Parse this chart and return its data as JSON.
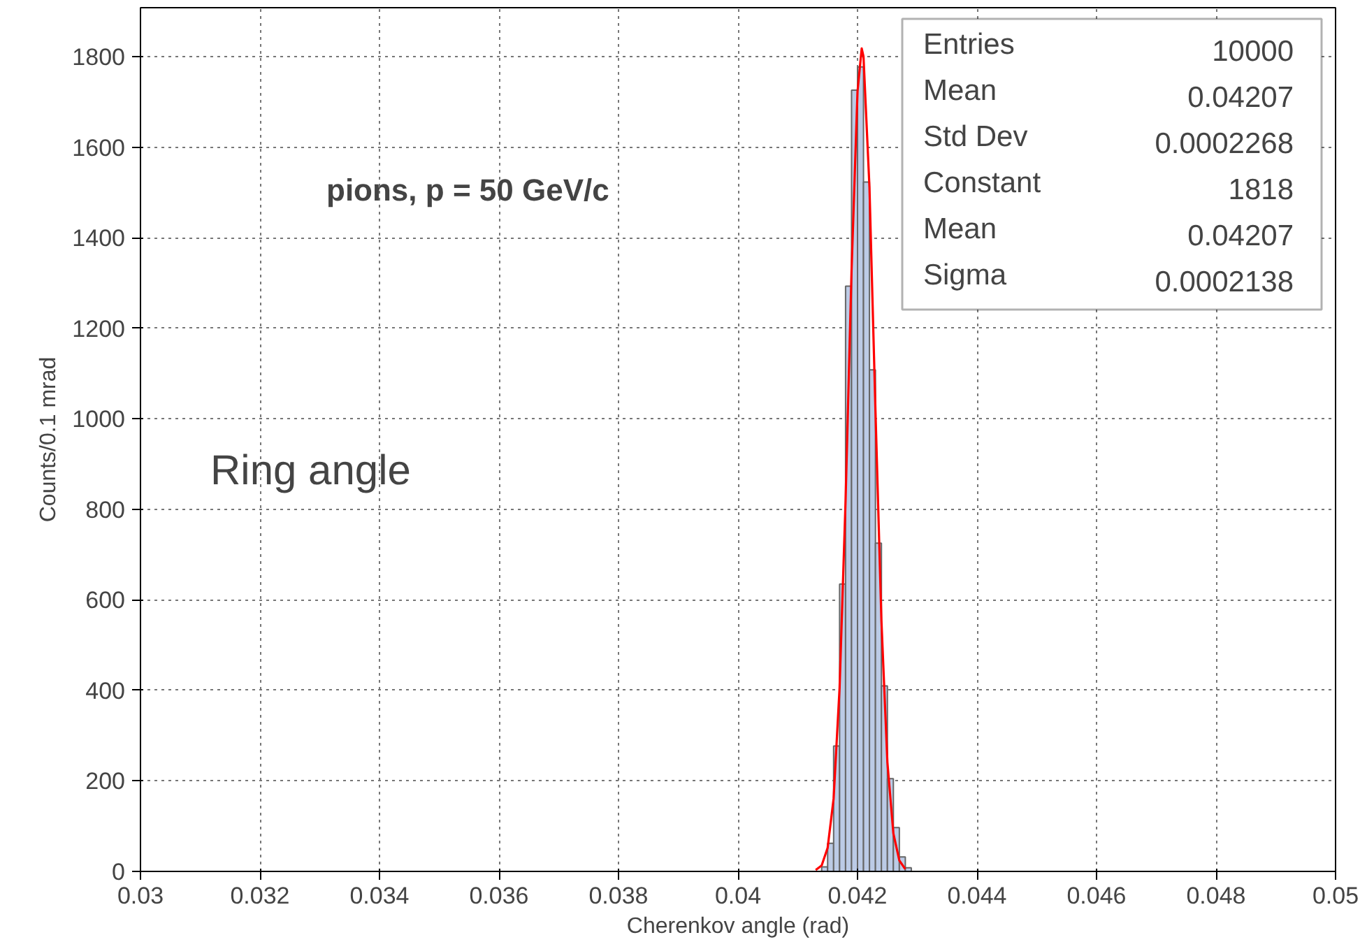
{
  "chart_data": {
    "type": "histogram",
    "xlabel": "Cherenkov angle (rad)",
    "ylabel": "Counts/0.1 mrad",
    "bins": [
      0.0414,
      0.0415,
      0.0416,
      0.0417,
      0.0418,
      0.0419,
      0.042,
      0.0421,
      0.0422,
      0.0423,
      0.0424,
      0.0425,
      0.0426,
      0.0427,
      0.0428,
      0.0429
    ],
    "values": [
      10,
      62,
      277,
      635,
      1293,
      1726,
      1777,
      1523,
      1108,
      725,
      410,
      205,
      97,
      32,
      8
    ],
    "color": "#bccbe6",
    "series": [
      {
        "type": "line",
        "color": "#ff0000",
        "x": [
          0.0413,
          0.0414,
          0.0415,
          0.0416,
          0.0417,
          0.0418,
          0.0419,
          0.042,
          0.04207,
          0.0421,
          0.0422,
          0.0423,
          0.0424,
          0.0425,
          0.0426,
          0.0427,
          0.0428
        ],
        "values": [
          3,
          13,
          52,
          161,
          406,
          819,
          1326,
          1723,
          1818,
          1800,
          1511,
          1019,
          554,
          241,
          84,
          24,
          5
        ]
      }
    ],
    "xlim": [
      0.03,
      0.05
    ],
    "xticks": [
      0.03,
      0.032,
      0.034,
      0.036,
      0.038,
      0.04,
      0.042,
      0.044,
      0.046,
      0.048,
      0.05
    ],
    "ylim": [
      0,
      1908
    ],
    "yticks": [
      0,
      200,
      400,
      600,
      800,
      1000,
      1200,
      1400,
      1600,
      1800
    ],
    "grid": true,
    "line_style": "solid",
    "annotations": [
      "pions, p = 50 GeV/c",
      "Ring angle",
      "Entries",
      "10000",
      "Mean",
      "0.04207",
      "Std Dev",
      "0.0002268",
      "Constant",
      "1818",
      "Mean",
      "0.04207",
      "Sigma",
      "0.0002138"
    ]
  }
}
